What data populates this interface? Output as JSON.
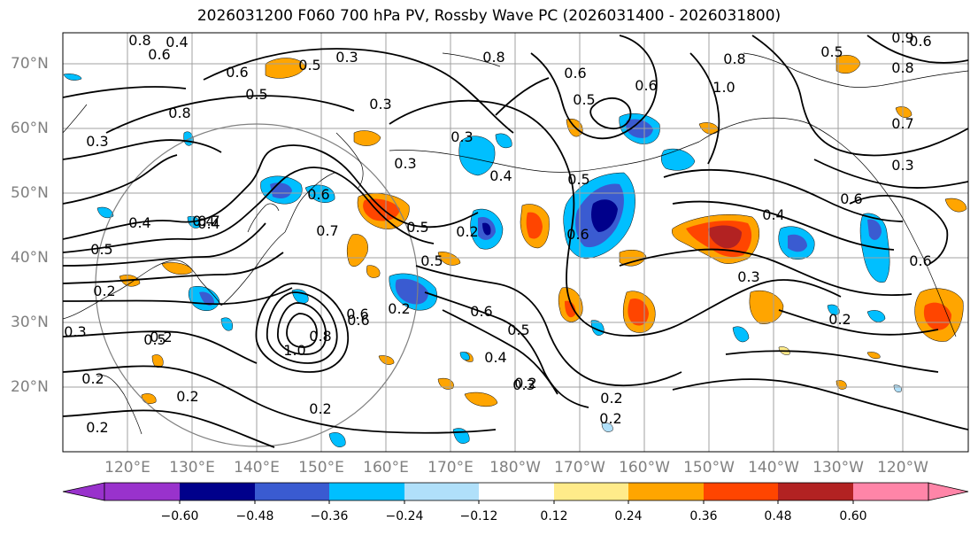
{
  "title": "2026031200 F060 700 hPa PV, Rossby Wave PC (2026031400 - 2026031800)",
  "lat_labels": [
    "70°N",
    "60°N",
    "50°N",
    "40°N",
    "30°N",
    "20°N"
  ],
  "lon_labels": [
    "120°E",
    "130°E",
    "140°E",
    "150°E",
    "160°E",
    "170°E",
    "180°W",
    "170°W",
    "160°W",
    "150°W",
    "140°W",
    "130°W",
    "120°W"
  ],
  "colorbar": {
    "colors": [
      "#9932cc",
      "#00008b",
      "#3a5bd1",
      "#00bfff",
      "#b0e0fa",
      "#ffffff",
      "#ffeb8a",
      "#ffa500",
      "#ff4500",
      "#b22222",
      "#ff85a8"
    ],
    "tick_labels": [
      "−0.60",
      "−0.48",
      "−0.36",
      "−0.24",
      "−0.12",
      "0.12",
      "0.24",
      "0.36",
      "0.48",
      "0.60"
    ]
  },
  "contour_labels": [
    "0.8",
    "0.6",
    "0.4",
    "0.3",
    "0.5",
    "0.6",
    "0.8",
    "0.3",
    "0.8",
    "0.6",
    "0.5",
    "1.0",
    "0.5",
    "0.7",
    "0.3",
    "0.5",
    "0.4",
    "0.5",
    "0.6",
    "0.7",
    "0.3",
    "0.2",
    "0.4",
    "0.2",
    "0.5",
    "0.3",
    "0.6",
    "0.4",
    "0.2",
    "0.5",
    "0.6",
    "0.5",
    "0.2",
    "0.5",
    "0.6",
    "0.4",
    "0.3",
    "0.2",
    "0.2",
    "0.2",
    "1.0",
    "0.8",
    "0.6",
    "0.2",
    "0.2",
    "0.3",
    "0.4",
    "0.2",
    "0.3",
    "0.4",
    "0.6",
    "0.8",
    "0.6",
    "0.9",
    "0.8",
    "0.5",
    "0.7",
    "0.3",
    "0.6",
    "0.6",
    "0.2",
    "0.2"
  ]
}
